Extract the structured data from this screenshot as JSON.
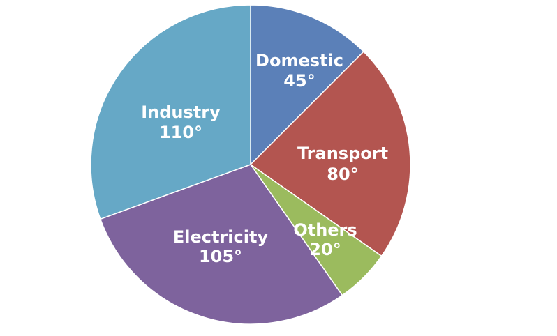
{
  "chart_data": {
    "type": "pie",
    "unit": "°",
    "start_angle_deg": 0,
    "direction": "clockwise",
    "slices": [
      {
        "label": "Domestic",
        "value": 45,
        "value_text": "45°",
        "color": "#5B80B8"
      },
      {
        "label": "Transport",
        "value": 80,
        "value_text": "80°",
        "color": "#B35550"
      },
      {
        "label": "Others",
        "value": 20,
        "value_text": "20°",
        "color": "#9BBB5E"
      },
      {
        "label": "Electricity",
        "value": 105,
        "value_text": "105°",
        "color": "#7E639D"
      },
      {
        "label": "Industry",
        "value": 110,
        "value_text": "110°",
        "color": "#66A8C6"
      }
    ]
  }
}
